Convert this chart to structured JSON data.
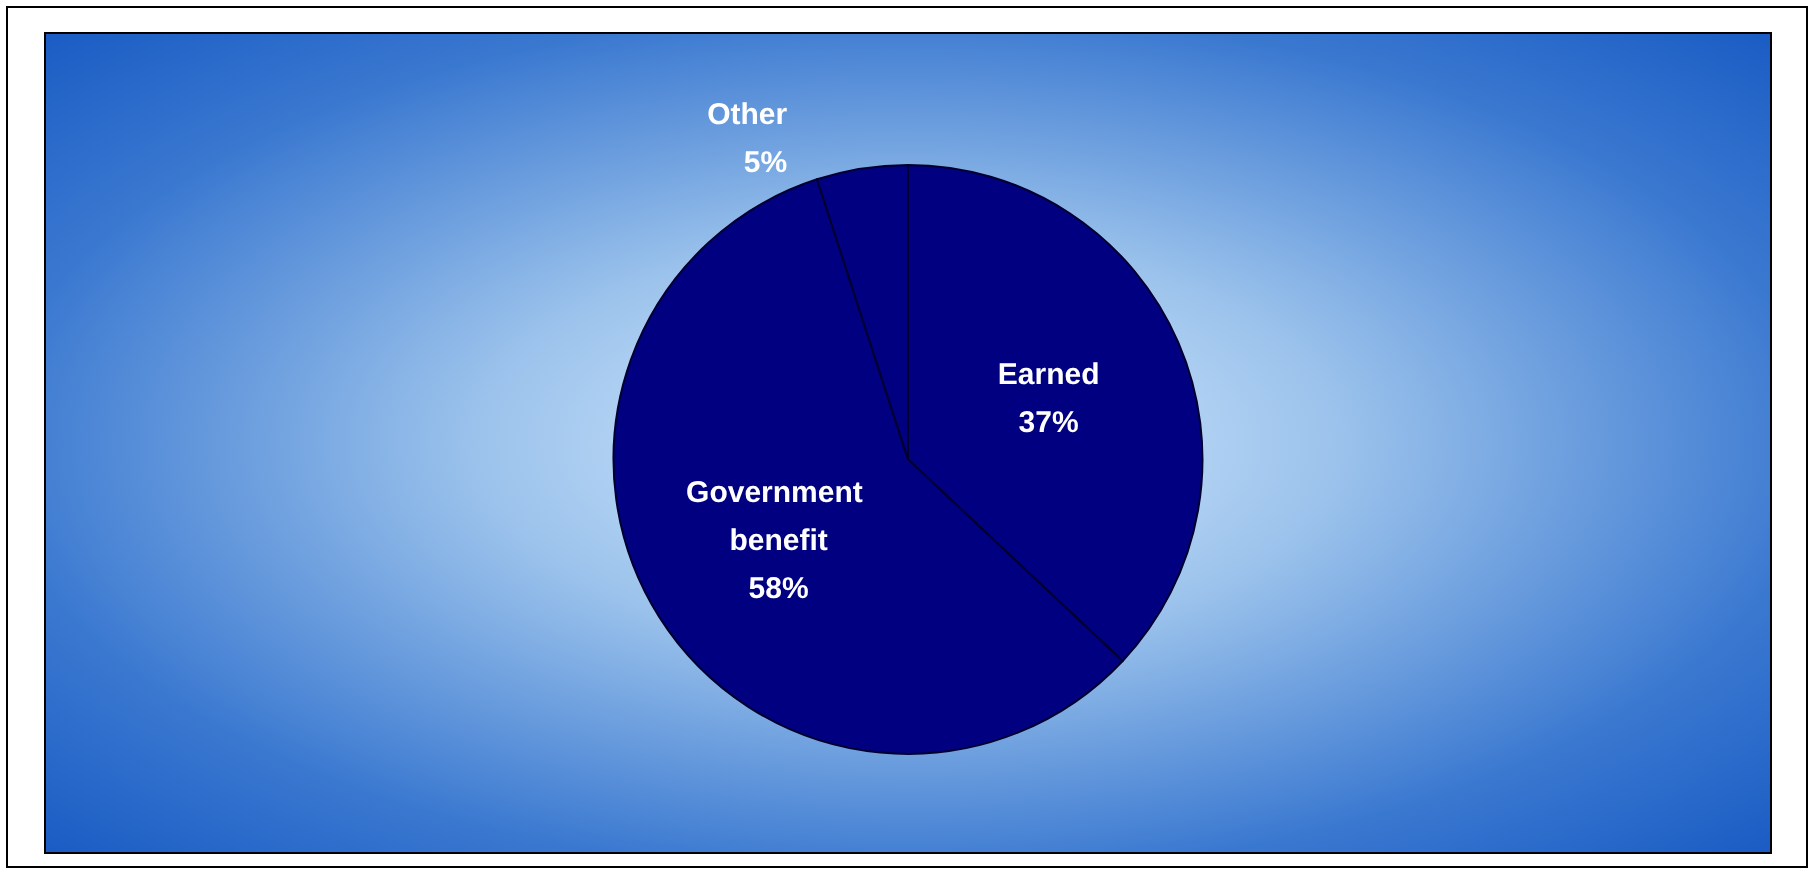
{
  "chart_data": {
    "type": "pie",
    "categories": [
      "Earned",
      "Government benefit",
      "Other"
    ],
    "values": [
      37,
      58,
      5
    ],
    "colors": [
      "#000080",
      "#000080",
      "#000080"
    ],
    "value_labels": [
      "37%",
      "58%",
      "5%"
    ],
    "legend": false
  }
}
